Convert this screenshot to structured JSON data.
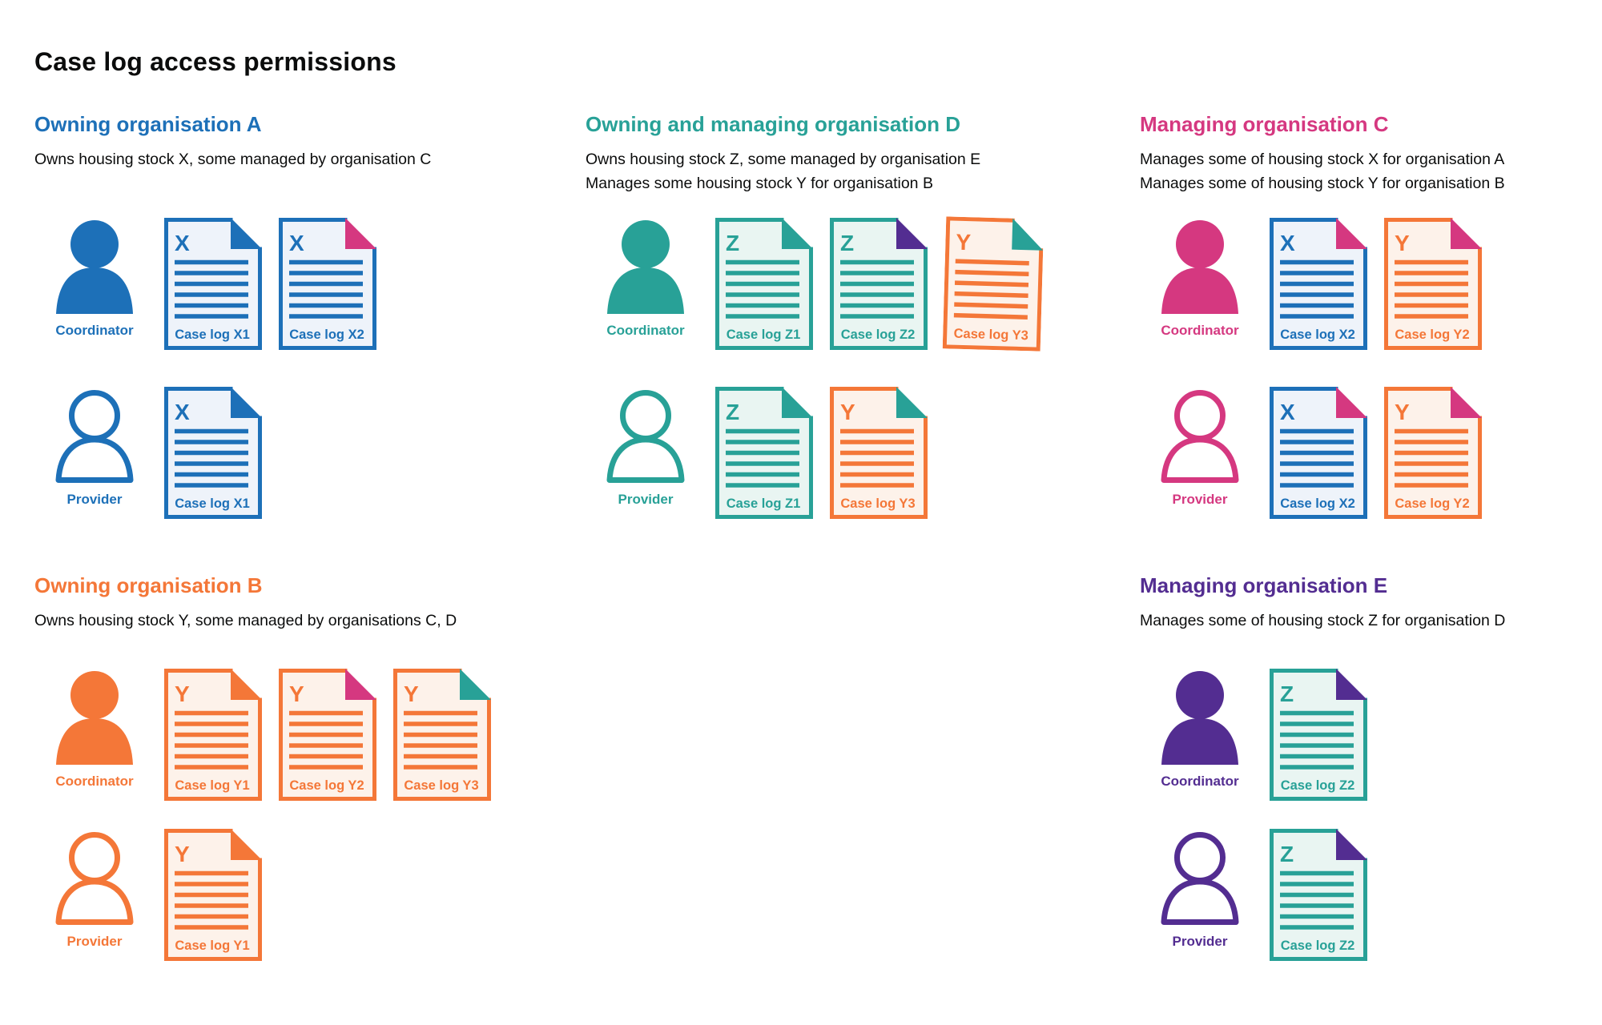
{
  "title": "Case log access permissions",
  "colors": {
    "blue": "#1d70b8",
    "teal": "#28a197",
    "pink": "#d53880",
    "orange": "#f47738",
    "purple": "#532d91",
    "text": "#0b0c0c",
    "fill_blue": "#eef3fa",
    "fill_teal": "#e9f5f2",
    "fill_orange": "#fdf2ea"
  },
  "roles": {
    "coordinator": "Coordinator",
    "provider": "Provider"
  },
  "sections": [
    {
      "id": "org-a",
      "color": "blue",
      "heading": "Owning organisation A",
      "description": [
        "Owns housing stock X, some managed by organisation C"
      ],
      "rows": [
        {
          "role": "coordinator",
          "docs": [
            {
              "letter": "X",
              "doc_color": "blue",
              "corner_color": "blue",
              "label": "Case log X1"
            },
            {
              "letter": "X",
              "doc_color": "blue",
              "corner_color": "pink",
              "label": "Case log X2"
            }
          ]
        },
        {
          "role": "provider",
          "docs": [
            {
              "letter": "X",
              "doc_color": "blue",
              "corner_color": "blue",
              "label": "Case log X1"
            }
          ]
        }
      ]
    },
    {
      "id": "org-d",
      "color": "teal",
      "heading": "Owning and managing organisation D",
      "description": [
        "Owns housing stock Z, some managed by organisation E",
        "Manages some housing stock Y for organisation B"
      ],
      "rows": [
        {
          "role": "coordinator",
          "docs": [
            {
              "letter": "Z",
              "doc_color": "teal",
              "corner_color": "teal",
              "label": "Case log Z1"
            },
            {
              "letter": "Z",
              "doc_color": "teal",
              "corner_color": "purple",
              "label": "Case log Z2"
            },
            {
              "letter": "Y",
              "doc_color": "orange",
              "corner_color": "teal",
              "label": "Case log Y3",
              "tilted": true
            }
          ]
        },
        {
          "role": "provider",
          "docs": [
            {
              "letter": "Z",
              "doc_color": "teal",
              "corner_color": "teal",
              "label": "Case log Z1"
            },
            {
              "letter": "Y",
              "doc_color": "orange",
              "corner_color": "teal",
              "label": "Case log Y3"
            }
          ]
        }
      ]
    },
    {
      "id": "org-c",
      "color": "pink",
      "heading": "Managing organisation C",
      "description": [
        "Manages some of housing stock X for organisation A",
        "Manages some of housing stock Y for organisation B"
      ],
      "rows": [
        {
          "role": "coordinator",
          "docs": [
            {
              "letter": "X",
              "doc_color": "blue",
              "corner_color": "pink",
              "label": "Case log X2"
            },
            {
              "letter": "Y",
              "doc_color": "orange",
              "corner_color": "pink",
              "label": "Case log Y2"
            }
          ]
        },
        {
          "role": "provider",
          "docs": [
            {
              "letter": "X",
              "doc_color": "blue",
              "corner_color": "pink",
              "label": "Case log X2"
            },
            {
              "letter": "Y",
              "doc_color": "orange",
              "corner_color": "pink",
              "label": "Case log Y2"
            }
          ]
        }
      ]
    },
    {
      "id": "org-b",
      "color": "orange",
      "heading": "Owning organisation B",
      "description": [
        "Owns housing stock Y, some managed by organisations C, D"
      ],
      "rows": [
        {
          "role": "coordinator",
          "docs": [
            {
              "letter": "Y",
              "doc_color": "orange",
              "corner_color": "orange",
              "label": "Case log Y1"
            },
            {
              "letter": "Y",
              "doc_color": "orange",
              "corner_color": "pink",
              "label": "Case log Y2"
            },
            {
              "letter": "Y",
              "doc_color": "orange",
              "corner_color": "teal",
              "label": "Case log Y3"
            }
          ]
        },
        {
          "role": "provider",
          "docs": [
            {
              "letter": "Y",
              "doc_color": "orange",
              "corner_color": "orange",
              "label": "Case log Y1"
            }
          ]
        }
      ]
    },
    {
      "id": "org-e",
      "color": "purple",
      "heading": "Managing organisation E",
      "description": [
        "Manages some of housing stock Z for organisation D"
      ],
      "rows": [
        {
          "role": "coordinator",
          "docs": [
            {
              "letter": "Z",
              "doc_color": "teal",
              "corner_color": "purple",
              "label": "Case log Z2"
            }
          ]
        },
        {
          "role": "provider",
          "docs": [
            {
              "letter": "Z",
              "doc_color": "teal",
              "corner_color": "purple",
              "label": "Case log Z2"
            }
          ]
        }
      ]
    }
  ]
}
